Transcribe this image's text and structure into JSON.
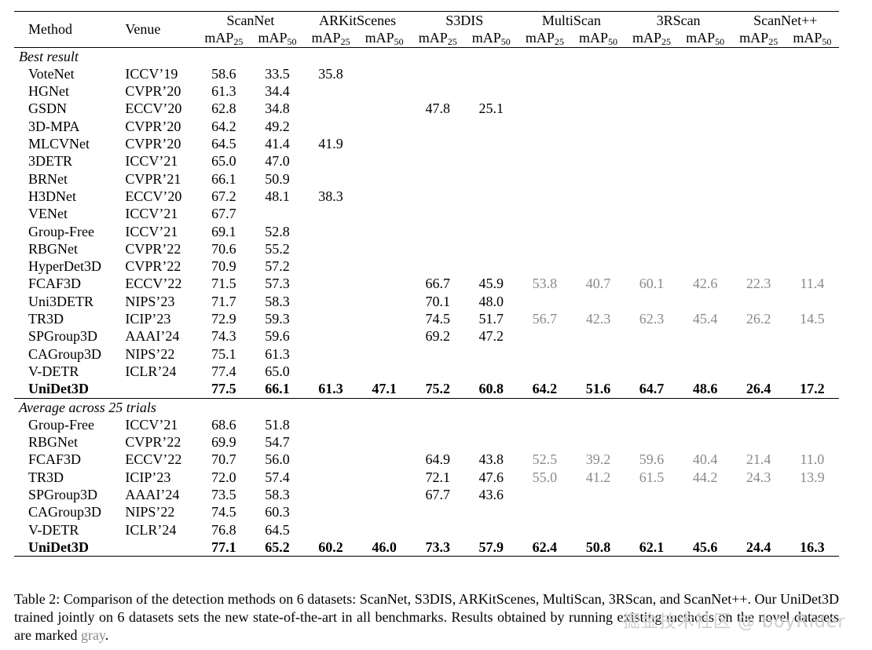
{
  "table": {
    "header": {
      "method": "Method",
      "venue": "Venue",
      "datasets": [
        "ScanNet",
        "ARKitScenes",
        "S3DIS",
        "MultiScan",
        "3RScan",
        "ScanNet++"
      ],
      "metric_base": "mAP",
      "metric_subs": [
        "25",
        "50"
      ]
    },
    "sections": [
      {
        "title": "Best result",
        "rows": [
          {
            "method": "VoteNet",
            "venue": "ICCV’19",
            "values": [
              "58.6",
              "33.5",
              "35.8",
              "",
              "",
              "",
              "",
              "",
              "",
              "",
              "",
              ""
            ],
            "gray": []
          },
          {
            "method": "HGNet",
            "venue": "CVPR’20",
            "values": [
              "61.3",
              "34.4",
              "",
              "",
              "",
              "",
              "",
              "",
              "",
              "",
              "",
              ""
            ],
            "gray": []
          },
          {
            "method": "GSDN",
            "venue": "ECCV’20",
            "values": [
              "62.8",
              "34.8",
              "",
              "",
              "47.8",
              "25.1",
              "",
              "",
              "",
              "",
              "",
              ""
            ],
            "gray": []
          },
          {
            "method": "3D-MPA",
            "venue": "CVPR’20",
            "values": [
              "64.2",
              "49.2",
              "",
              "",
              "",
              "",
              "",
              "",
              "",
              "",
              "",
              ""
            ],
            "gray": []
          },
          {
            "method": "MLCVNet",
            "venue": "CVPR’20",
            "values": [
              "64.5",
              "41.4",
              "41.9",
              "",
              "",
              "",
              "",
              "",
              "",
              "",
              "",
              ""
            ],
            "gray": []
          },
          {
            "method": "3DETR",
            "venue": "ICCV’21",
            "values": [
              "65.0",
              "47.0",
              "",
              "",
              "",
              "",
              "",
              "",
              "",
              "",
              "",
              ""
            ],
            "gray": []
          },
          {
            "method": "BRNet",
            "venue": "CVPR’21",
            "values": [
              "66.1",
              "50.9",
              "",
              "",
              "",
              "",
              "",
              "",
              "",
              "",
              "",
              ""
            ],
            "gray": []
          },
          {
            "method": "H3DNet",
            "venue": "ECCV’20",
            "values": [
              "67.2",
              "48.1",
              "38.3",
              "",
              "",
              "",
              "",
              "",
              "",
              "",
              "",
              ""
            ],
            "gray": []
          },
          {
            "method": "VENet",
            "venue": "ICCV’21",
            "values": [
              "67.7",
              "",
              "",
              "",
              "",
              "",
              "",
              "",
              "",
              "",
              "",
              ""
            ],
            "gray": []
          },
          {
            "method": "Group-Free",
            "venue": "ICCV’21",
            "values": [
              "69.1",
              "52.8",
              "",
              "",
              "",
              "",
              "",
              "",
              "",
              "",
              "",
              ""
            ],
            "gray": []
          },
          {
            "method": "RBGNet",
            "venue": "CVPR’22",
            "values": [
              "70.6",
              "55.2",
              "",
              "",
              "",
              "",
              "",
              "",
              "",
              "",
              "",
              ""
            ],
            "gray": []
          },
          {
            "method": "HyperDet3D",
            "venue": "CVPR’22",
            "values": [
              "70.9",
              "57.2",
              "",
              "",
              "",
              "",
              "",
              "",
              "",
              "",
              "",
              ""
            ],
            "gray": []
          },
          {
            "method": "FCAF3D",
            "venue": "ECCV’22",
            "values": [
              "71.5",
              "57.3",
              "",
              "",
              "66.7",
              "45.9",
              "53.8",
              "40.7",
              "60.1",
              "42.6",
              "22.3",
              "11.4"
            ],
            "gray": [
              6,
              7,
              8,
              9,
              10,
              11
            ]
          },
          {
            "method": "Uni3DETR",
            "venue": "NIPS’23",
            "values": [
              "71.7",
              "58.3",
              "",
              "",
              "70.1",
              "48.0",
              "",
              "",
              "",
              "",
              "",
              ""
            ],
            "gray": []
          },
          {
            "method": "TR3D",
            "venue": "ICIP’23",
            "values": [
              "72.9",
              "59.3",
              "",
              "",
              "74.5",
              "51.7",
              "56.7",
              "42.3",
              "62.3",
              "45.4",
              "26.2",
              "14.5"
            ],
            "gray": [
              6,
              7,
              8,
              9,
              10,
              11
            ]
          },
          {
            "method": "SPGroup3D",
            "venue": "AAAI’24",
            "values": [
              "74.3",
              "59.6",
              "",
              "",
              "69.2",
              "47.2",
              "",
              "",
              "",
              "",
              "",
              ""
            ],
            "gray": []
          },
          {
            "method": "CAGroup3D",
            "venue": "NIPS’22",
            "values": [
              "75.1",
              "61.3",
              "",
              "",
              "",
              "",
              "",
              "",
              "",
              "",
              "",
              ""
            ],
            "gray": []
          },
          {
            "method": "V-DETR",
            "venue": "ICLR’24",
            "values": [
              "77.4",
              "65.0",
              "",
              "",
              "",
              "",
              "",
              "",
              "",
              "",
              "",
              ""
            ],
            "gray": []
          }
        ],
        "ours": {
          "method": "UniDet3D",
          "venue": "",
          "values": [
            "77.5",
            "66.1",
            "61.3",
            "47.1",
            "75.2",
            "60.8",
            "64.2",
            "51.6",
            "64.7",
            "48.6",
            "26.4",
            "17.2"
          ]
        }
      },
      {
        "title": "Average across 25 trials",
        "rows": [
          {
            "method": "Group-Free",
            "venue": "ICCV’21",
            "values": [
              "68.6",
              "51.8",
              "",
              "",
              "",
              "",
              "",
              "",
              "",
              "",
              "",
              ""
            ],
            "gray": []
          },
          {
            "method": "RBGNet",
            "venue": "CVPR’22",
            "values": [
              "69.9",
              "54.7",
              "",
              "",
              "",
              "",
              "",
              "",
              "",
              "",
              "",
              ""
            ],
            "gray": []
          },
          {
            "method": "FCAF3D",
            "venue": "ECCV’22",
            "values": [
              "70.7",
              "56.0",
              "",
              "",
              "64.9",
              "43.8",
              "52.5",
              "39.2",
              "59.6",
              "40.4",
              "21.4",
              "11.0"
            ],
            "gray": [
              6,
              7,
              8,
              9,
              10,
              11
            ]
          },
          {
            "method": "TR3D",
            "venue": "ICIP’23",
            "values": [
              "72.0",
              "57.4",
              "",
              "",
              "72.1",
              "47.6",
              "55.0",
              "41.2",
              "61.5",
              "44.2",
              "24.3",
              "13.9"
            ],
            "gray": [
              6,
              7,
              8,
              9,
              10,
              11
            ]
          },
          {
            "method": "SPGroup3D",
            "venue": "AAAI’24",
            "values": [
              "73.5",
              "58.3",
              "",
              "",
              "67.7",
              "43.6",
              "",
              "",
              "",
              "",
              "",
              ""
            ],
            "gray": []
          },
          {
            "method": "CAGroup3D",
            "venue": "NIPS’22",
            "values": [
              "74.5",
              "60.3",
              "",
              "",
              "",
              "",
              "",
              "",
              "",
              "",
              "",
              ""
            ],
            "gray": []
          },
          {
            "method": "V-DETR",
            "venue": "ICLR’24",
            "values": [
              "76.8",
              "64.5",
              "",
              "",
              "",
              "",
              "",
              "",
              "",
              "",
              "",
              ""
            ],
            "gray": []
          }
        ],
        "ours": {
          "method": "UniDet3D",
          "venue": "",
          "values": [
            "77.1",
            "65.2",
            "60.2",
            "46.0",
            "73.3",
            "57.9",
            "62.4",
            "50.8",
            "62.1",
            "45.6",
            "24.4",
            "16.3"
          ]
        }
      }
    ]
  },
  "caption": {
    "main": "Table 2: Comparison of the detection methods on 6 datasets: ScanNet, S3DIS, ARKitScenes, MultiScan, 3RScan, and ScanNet++. Our UniDet3D trained jointly on 6 datasets sets the new state-of-the-art in all benchmarks. Results obtained by running existing methods on the novel datasets are marked ",
    "gray_word": "gray",
    "end": "."
  },
  "watermark": "掘金技术社区 @ boyRider",
  "colors": {
    "gray": "#8a8a8a",
    "text": "#000000"
  }
}
